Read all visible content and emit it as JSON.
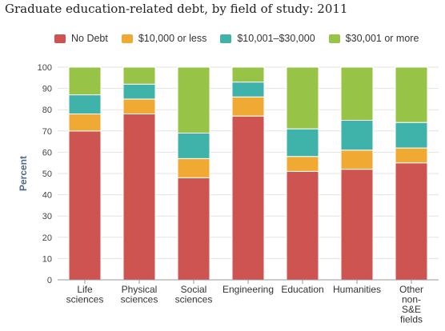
{
  "chart_data": {
    "type": "bar",
    "stacked": true,
    "title": "Graduate education-related debt, by field of study: 2011",
    "ylabel": "Percent",
    "xlabel": "",
    "ylim": [
      0,
      100
    ],
    "yticks": [
      "0",
      "10",
      "20",
      "30",
      "40",
      "50",
      "60",
      "70",
      "80",
      "90",
      "100"
    ],
    "grid": true,
    "legend_position": "top",
    "categories": [
      [
        "Life",
        "sciences"
      ],
      [
        "Physical",
        "sciences"
      ],
      [
        "Social",
        "sciences"
      ],
      [
        "Engineering"
      ],
      [
        "Education"
      ],
      [
        "Humanities"
      ],
      [
        "Other",
        "non-",
        "S&E",
        "fields"
      ]
    ],
    "series": [
      {
        "name": "No Debt",
        "color": "#cd5450",
        "values": [
          70,
          78,
          48,
          77,
          51,
          52,
          55
        ]
      },
      {
        "name": "$10,000 or less",
        "color": "#f0aa34",
        "values": [
          8,
          7,
          9,
          9,
          7,
          9,
          7
        ]
      },
      {
        "name": "$10,001–$30,000",
        "color": "#3fb3aa",
        "values": [
          9,
          7,
          12,
          7,
          13,
          14,
          12
        ]
      },
      {
        "name": "$30,001 or more",
        "color": "#97c346",
        "values": [
          13,
          8,
          31,
          7,
          29,
          25,
          26
        ]
      }
    ]
  }
}
